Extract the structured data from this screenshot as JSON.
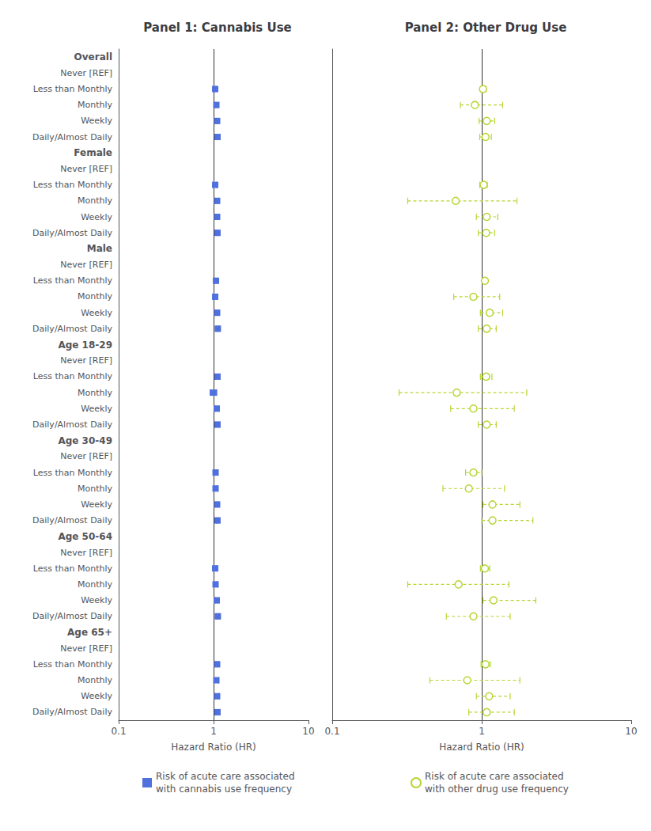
{
  "chart_data": {
    "type": "scatter",
    "log": "x",
    "xlabel": "Hazard Ratio (HR)",
    "xlim": [
      0.1,
      10
    ],
    "xticks": [
      0.1,
      1,
      10
    ],
    "reference_x": 1,
    "grid": false,
    "groups": [
      {
        "label": "Overall",
        "categories": [
          "Never [REF]",
          "Less than Monthly",
          "Monthly",
          "Weekly",
          "Daily/Almost Daily"
        ]
      },
      {
        "label": "Female",
        "categories": [
          "Never [REF]",
          "Less than Monthly",
          "Monthly",
          "Weekly",
          "Daily/Almost Daily"
        ]
      },
      {
        "label": "Male",
        "categories": [
          "Never [REF]",
          "Less than Monthly",
          "Monthly",
          "Weekly",
          "Daily/Almost Daily"
        ]
      },
      {
        "label": "Age 18-29",
        "categories": [
          "Never [REF]",
          "Less than Monthly",
          "Monthly",
          "Weekly",
          "Daily/Almost Daily"
        ]
      },
      {
        "label": "Age 30-49",
        "categories": [
          "Never [REF]",
          "Less than Monthly",
          "Monthly",
          "Weekly",
          "Daily/Almost Daily"
        ]
      },
      {
        "label": "Age 50-64",
        "categories": [
          "Never [REF]",
          "Less than Monthly",
          "Monthly",
          "Weekly",
          "Daily/Almost Daily"
        ]
      },
      {
        "label": "Age 65+",
        "categories": [
          "Never [REF]",
          "Less than Monthly",
          "Monthly",
          "Weekly",
          "Daily/Almost Daily"
        ]
      }
    ],
    "series": [
      {
        "name": "Risk of acute care associated\nwith cannabis use frequency",
        "title": "Panel 1: Cannabis Use",
        "marker": "square",
        "line_style": "solid",
        "values": [
          null,
          1.04,
          1.07,
          1.09,
          1.1,
          null,
          1.04,
          1.09,
          1.09,
          1.1,
          null,
          1.06,
          1.04,
          1.09,
          1.11,
          null,
          1.1,
          1.0,
          1.08,
          1.1,
          null,
          1.05,
          1.05,
          1.09,
          1.1,
          null,
          1.04,
          1.05,
          1.08,
          1.11,
          null,
          1.09,
          1.07,
          1.09,
          1.1
        ],
        "lower": [
          null,
          1.02,
          1.04,
          1.07,
          1.08,
          null,
          1.01,
          1.05,
          1.06,
          1.07,
          null,
          1.03,
          1.0,
          1.06,
          1.08,
          null,
          1.05,
          0.92,
          1.04,
          1.06,
          null,
          1.02,
          1.01,
          1.06,
          1.07,
          null,
          1.01,
          1.01,
          1.05,
          1.07,
          null,
          1.06,
          1.01,
          1.04,
          1.05
        ],
        "upper": [
          null,
          1.06,
          1.1,
          1.11,
          1.12,
          null,
          1.07,
          1.13,
          1.12,
          1.13,
          null,
          1.09,
          1.08,
          1.12,
          1.14,
          null,
          1.15,
          1.08,
          1.12,
          1.14,
          null,
          1.08,
          1.09,
          1.12,
          1.13,
          null,
          1.07,
          1.09,
          1.11,
          1.15,
          null,
          1.12,
          1.13,
          1.14,
          1.15
        ]
      },
      {
        "name": "Risk of acute care associated\nwith other drug use frequency",
        "title": "Panel 2: Other Drug Use",
        "marker": "circle",
        "line_style": "dashed",
        "values": [
          null,
          1.02,
          0.9,
          1.08,
          1.06,
          null,
          1.03,
          0.67,
          1.08,
          1.07,
          null,
          1.05,
          0.88,
          1.13,
          1.08,
          null,
          1.07,
          0.68,
          0.88,
          1.08,
          null,
          0.88,
          0.82,
          1.18,
          1.18,
          null,
          1.05,
          0.7,
          1.2,
          0.88,
          null,
          1.06,
          0.8,
          1.12,
          1.08
        ],
        "lower": [
          null,
          0.98,
          0.72,
          0.96,
          0.97,
          null,
          0.97,
          0.32,
          0.92,
          0.95,
          null,
          1.01,
          0.65,
          0.98,
          0.95,
          null,
          0.98,
          0.28,
          0.62,
          0.95,
          null,
          0.78,
          0.55,
          1.02,
          1.0,
          null,
          0.98,
          0.32,
          1.02,
          0.58,
          null,
          0.99,
          0.45,
          0.92,
          0.82
        ],
        "upper": [
          null,
          1.07,
          1.38,
          1.22,
          1.16,
          null,
          1.09,
          1.72,
          1.28,
          1.22,
          null,
          1.09,
          1.32,
          1.38,
          1.25,
          null,
          1.17,
          2.0,
          1.65,
          1.25,
          null,
          1.0,
          1.42,
          1.8,
          2.2,
          null,
          1.13,
          1.52,
          2.3,
          1.55,
          null,
          1.14,
          1.8,
          1.55,
          1.65
        ]
      }
    ]
  }
}
